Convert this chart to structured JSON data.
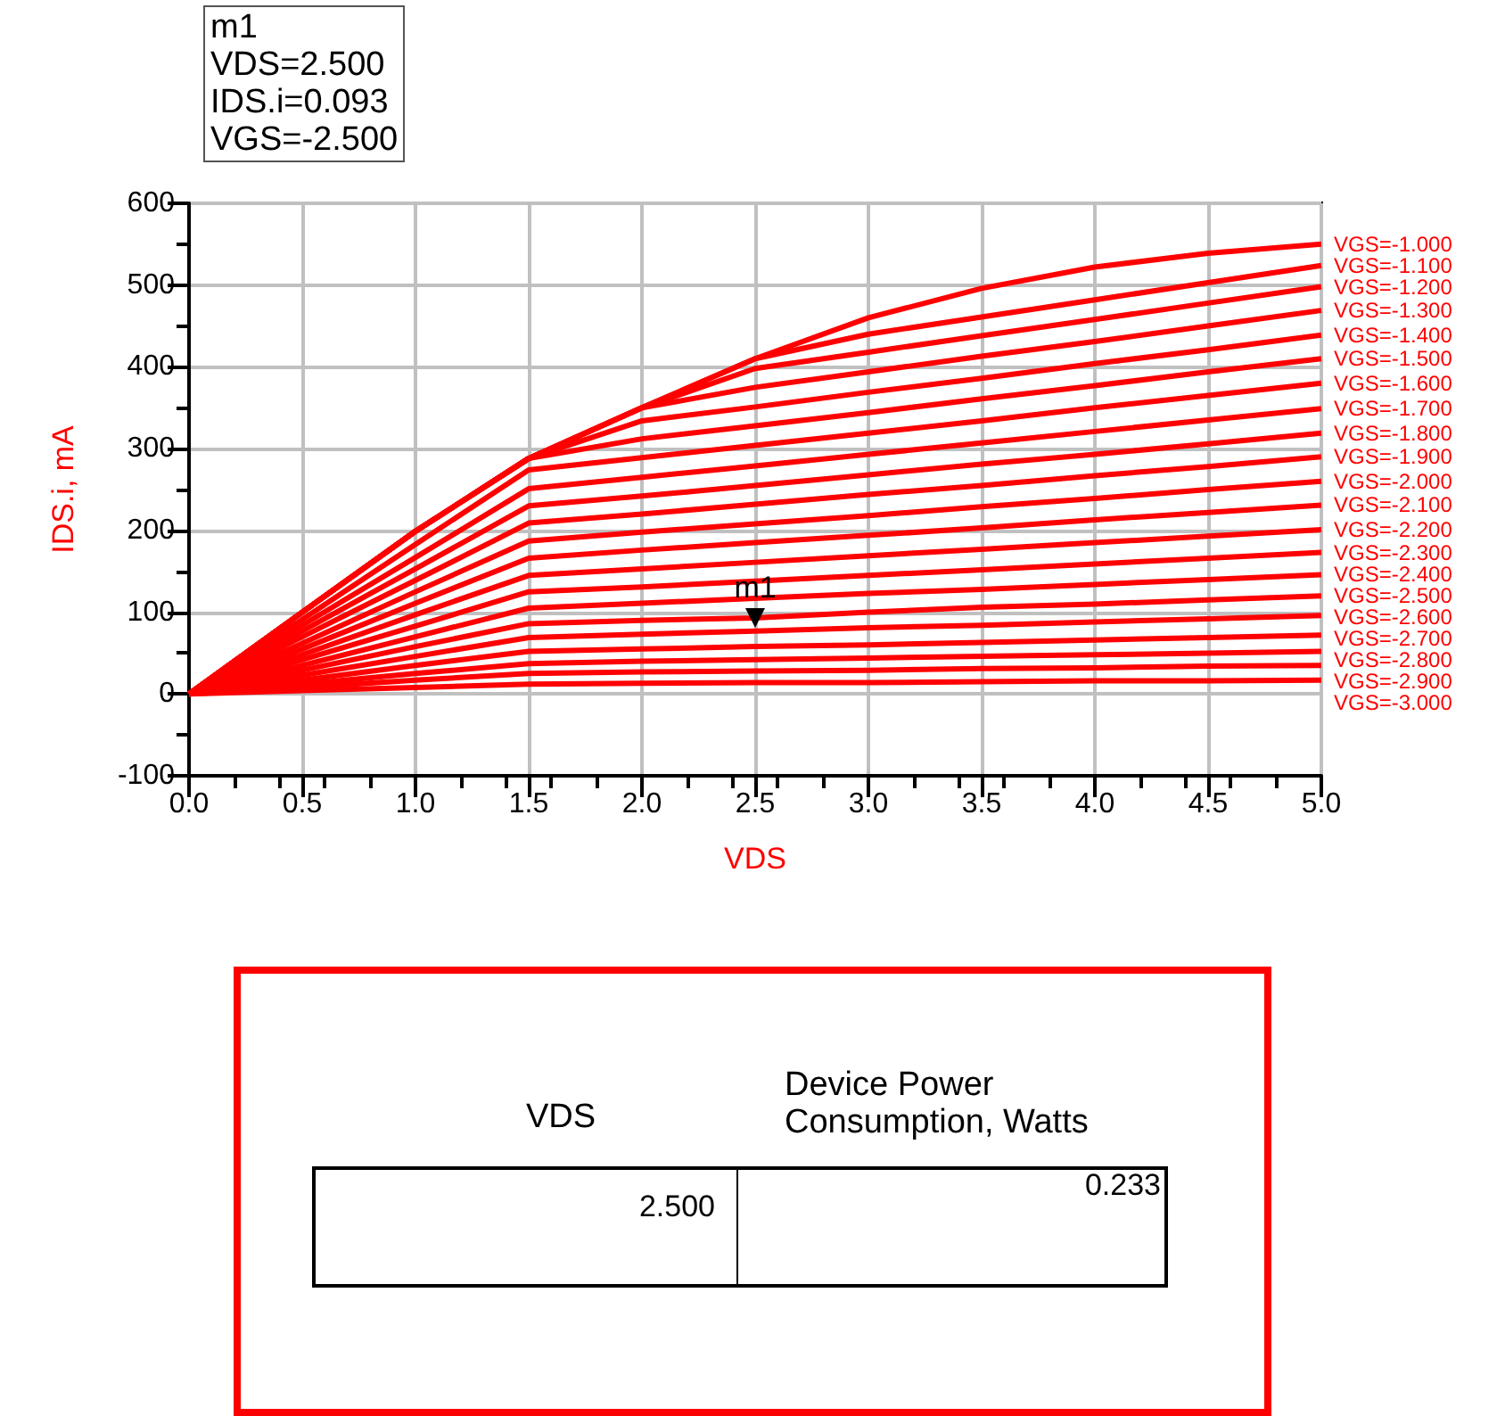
{
  "chart_data": {
    "type": "line",
    "xlabel": "VDS",
    "ylabel": "IDS.i, mA",
    "x": [
      0,
      0.5,
      1.0,
      1.5,
      2.0,
      2.5,
      3.0,
      3.5,
      4.0,
      4.5,
      5.0
    ],
    "xlim": [
      0,
      5
    ],
    "xticks": [
      {
        "value": 0,
        "label": "0.0"
      },
      {
        "value": 0.5,
        "label": "0.5"
      },
      {
        "value": 1,
        "label": "1.0"
      },
      {
        "value": 1.5,
        "label": "1.5"
      },
      {
        "value": 2,
        "label": "2.0"
      },
      {
        "value": 2.5,
        "label": "2.5"
      },
      {
        "value": 3,
        "label": "3.0"
      },
      {
        "value": 3.5,
        "label": "3.5"
      },
      {
        "value": 4,
        "label": "4.0"
      },
      {
        "value": 4.5,
        "label": "4.5"
      },
      {
        "value": 5,
        "label": "5.0"
      }
    ],
    "ylim": [
      -100,
      600
    ],
    "yticks": [
      -100,
      0,
      100,
      200,
      300,
      400,
      500,
      600
    ],
    "grid": true,
    "marker": "none",
    "series": [
      {
        "name": "VGS=-1.000",
        "color": "#ff0000",
        "values": [
          0,
          100,
          199,
          288,
          350,
          410,
          460,
          496,
          522,
          539,
          550
        ]
      },
      {
        "name": "VGS=-1.100",
        "color": "#ff0000",
        "values": [
          0,
          100,
          199,
          288,
          350,
          410,
          440,
          461,
          482,
          503,
          524
        ]
      },
      {
        "name": "VGS=-1.200",
        "color": "#ff0000",
        "values": [
          0,
          100,
          199,
          288,
          350,
          398,
          418,
          438,
          458,
          478,
          498
        ]
      },
      {
        "name": "VGS=-1.300",
        "color": "#ff0000",
        "values": [
          0,
          100,
          199,
          288,
          350,
          375,
          394,
          413,
          431,
          450,
          469
        ]
      },
      {
        "name": "VGS=-1.400",
        "color": "#ff0000",
        "values": [
          0,
          100,
          199,
          288,
          334,
          351,
          369,
          386,
          404,
          421,
          439
        ]
      },
      {
        "name": "VGS=-1.500",
        "color": "#ff0000",
        "values": [
          0,
          100,
          199,
          288,
          312,
          328,
          344,
          361,
          377,
          394,
          410
        ]
      },
      {
        "name": "VGS=-1.600",
        "color": "#ff0000",
        "values": [
          0,
          91,
          183,
          274,
          289,
          304,
          319,
          334,
          350,
          365,
          380
        ]
      },
      {
        "name": "VGS=-1.700",
        "color": "#ff0000",
        "values": [
          0,
          84,
          167,
          251,
          265,
          279,
          293,
          307,
          321,
          335,
          349
        ]
      },
      {
        "name": "VGS=-1.800",
        "color": "#ff0000",
        "values": [
          0,
          77,
          153,
          230,
          242,
          255,
          268,
          281,
          293,
          306,
          319
        ]
      },
      {
        "name": "VGS=-1.900",
        "color": "#ff0000",
        "values": [
          0,
          70,
          139,
          209,
          220,
          232,
          244,
          255,
          267,
          278,
          290
        ]
      },
      {
        "name": "VGS=-2.000",
        "color": "#ff0000",
        "values": [
          0,
          62,
          125,
          187,
          198,
          208,
          218,
          229,
          239,
          250,
          260
        ]
      },
      {
        "name": "VGS=-2.100",
        "color": "#ff0000",
        "values": [
          0,
          55,
          111,
          166,
          176,
          185,
          194,
          203,
          213,
          222,
          231
        ]
      },
      {
        "name": "VGS=-2.200",
        "color": "#ff0000",
        "values": [
          0,
          48,
          97,
          145,
          153,
          161,
          169,
          177,
          185,
          193,
          201
        ]
      },
      {
        "name": "VGS=-2.300",
        "color": "#ff0000",
        "values": [
          0,
          42,
          83,
          125,
          131,
          138,
          145,
          152,
          159,
          166,
          173
        ]
      },
      {
        "name": "VGS=-2.400",
        "color": "#ff0000",
        "values": [
          0,
          35,
          70,
          105,
          111,
          117,
          123,
          128,
          134,
          140,
          146
        ]
      },
      {
        "name": "VGS=-2.500",
        "color": "#ff0000",
        "values": [
          0,
          29,
          58,
          86,
          90,
          93,
          100,
          106,
          110,
          115,
          120
        ]
      },
      {
        "name": "VGS=-2.600",
        "color": "#ff0000",
        "values": [
          0,
          23,
          46,
          69,
          73,
          77,
          81,
          84,
          88,
          92,
          96
        ]
      },
      {
        "name": "VGS=-2.700",
        "color": "#ff0000",
        "values": [
          0,
          17,
          35,
          52,
          55,
          58,
          60,
          63,
          66,
          69,
          72
        ]
      },
      {
        "name": "VGS=-2.800",
        "color": "#ff0000",
        "values": [
          0,
          12,
          25,
          37,
          40,
          42,
          44,
          46,
          48,
          50,
          52
        ]
      },
      {
        "name": "VGS=-2.900",
        "color": "#ff0000",
        "values": [
          0,
          8,
          17,
          25,
          27,
          28,
          29,
          31,
          32,
          34,
          35
        ]
      },
      {
        "name": "VGS=-3.000",
        "color": "#ff0000",
        "values": [
          0,
          4,
          8,
          12,
          13,
          14,
          14,
          15,
          16,
          16,
          17
        ]
      }
    ],
    "annotations": [
      {
        "text": "m1",
        "x": 2.5,
        "y": 93
      },
      "m1\nVDS=2.500\nIDS.i=0.093\nVGS=-2.500",
      "VDS",
      "Device Power\nConsumption, Watts",
      "2.500",
      "0.233"
    ]
  }
}
